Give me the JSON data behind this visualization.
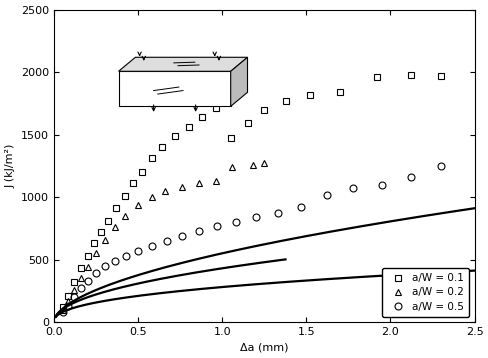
{
  "title": "",
  "xlabel": "Δa (mm)",
  "ylabel": "J (kJ/m²)",
  "xlim": [
    0,
    2.5
  ],
  "ylim": [
    0,
    2500
  ],
  "xticks": [
    0,
    0.5,
    1.0,
    1.5,
    2.0,
    2.5
  ],
  "yticks": [
    0,
    500,
    1000,
    1500,
    2000,
    2500
  ],
  "background_color": "#ffffff",
  "curve_color": "#000000",
  "sq_x": [
    0.05,
    0.08,
    0.12,
    0.16,
    0.2,
    0.24,
    0.28,
    0.32,
    0.37,
    0.42,
    0.47,
    0.52,
    0.58,
    0.64,
    0.72,
    0.8,
    0.88,
    0.96,
    1.05,
    1.15,
    1.25,
    1.38,
    1.52,
    1.7,
    1.92,
    2.12,
    2.3
  ],
  "sq_y": [
    120,
    210,
    320,
    430,
    530,
    630,
    720,
    810,
    910,
    1010,
    1110,
    1200,
    1310,
    1400,
    1490,
    1560,
    1640,
    1710,
    1470,
    1590,
    1700,
    1770,
    1820,
    1840,
    1960,
    1980,
    1970
  ],
  "tr_x": [
    0.05,
    0.08,
    0.12,
    0.16,
    0.2,
    0.25,
    0.3,
    0.36,
    0.42,
    0.5,
    0.58,
    0.66,
    0.76,
    0.86,
    0.96,
    1.06,
    1.18,
    1.25
  ],
  "tr_y": [
    100,
    170,
    260,
    350,
    440,
    550,
    660,
    760,
    850,
    940,
    1000,
    1050,
    1080,
    1110,
    1130,
    1240,
    1260,
    1270
  ],
  "ci_x": [
    0.05,
    0.08,
    0.12,
    0.16,
    0.2,
    0.25,
    0.3,
    0.36,
    0.43,
    0.5,
    0.58,
    0.67,
    0.76,
    0.86,
    0.97,
    1.08,
    1.2,
    1.33,
    1.47,
    1.62,
    1.78,
    1.95,
    2.12,
    2.3
  ],
  "ci_y": [
    80,
    130,
    200,
    270,
    330,
    390,
    450,
    490,
    530,
    570,
    610,
    650,
    690,
    730,
    770,
    800,
    840,
    870,
    920,
    1020,
    1070,
    1100,
    1160,
    1250
  ],
  "fit_sq_a": 550,
  "fit_sq_b": 0.55,
  "fit_tr_a": 430,
  "fit_tr_b": 0.48,
  "fit_ci_a": 280,
  "fit_ci_b": 0.42,
  "legend_labels": [
    "a/W = 0.1",
    "a/W = 0.2",
    "a/W = 0.5"
  ],
  "legend_markers": [
    "s",
    "^",
    "o"
  ],
  "marker_size": 5,
  "marker_facecolor": "none",
  "marker_edgecolor": "#000000",
  "line_width": 1.6
}
